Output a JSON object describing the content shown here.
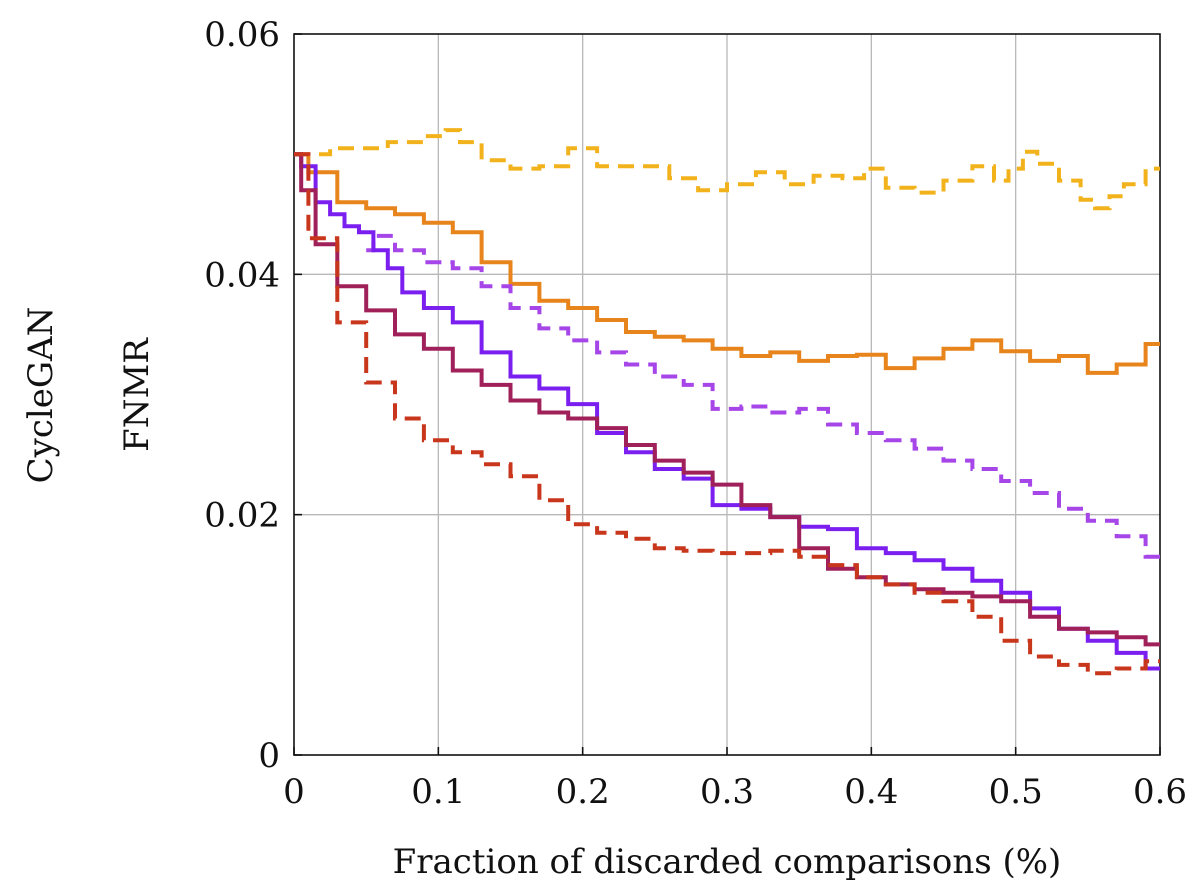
{
  "chart_data": {
    "type": "line",
    "title": "",
    "row_label": "CycleGAN",
    "xlabel": "Fraction of discarded comparisons (%)",
    "ylabel": "FNMR",
    "xlim": [
      0,
      0.6
    ],
    "ylim": [
      0,
      0.06
    ],
    "xticks": [
      0,
      0.1,
      0.2,
      0.3,
      0.4,
      0.5,
      0.6
    ],
    "xtick_labels": [
      "0",
      "0.1",
      "0.2",
      "0.3",
      "0.4",
      "0.5",
      "0.6"
    ],
    "yticks": [
      0,
      0.02,
      0.04,
      0.06
    ],
    "ytick_labels": [
      "0",
      "0.02",
      "0.04",
      "0.06"
    ],
    "grid": true,
    "legend": "none",
    "series": [
      {
        "name": "yellow-dashed",
        "color": "#f2b21c",
        "dashed": true,
        "x": [
          0,
          0.05,
          0.08,
          0.1,
          0.11,
          0.12,
          0.14,
          0.16,
          0.18,
          0.2,
          0.22,
          0.25,
          0.27,
          0.29,
          0.31,
          0.33,
          0.35,
          0.37,
          0.39,
          0.4,
          0.42,
          0.44,
          0.46,
          0.48,
          0.49,
          0.5,
          0.51,
          0.52,
          0.54,
          0.55,
          0.56,
          0.57,
          0.58,
          0.6
        ],
        "y": [
          0.05,
          0.0505,
          0.051,
          0.0515,
          0.052,
          0.051,
          0.0495,
          0.0488,
          0.049,
          0.0505,
          0.049,
          0.049,
          0.048,
          0.047,
          0.0475,
          0.0485,
          0.0475,
          0.0482,
          0.048,
          0.0488,
          0.0472,
          0.0468,
          0.0478,
          0.049,
          0.0478,
          0.0488,
          0.0502,
          0.0492,
          0.0478,
          0.0462,
          0.0455,
          0.0465,
          0.0475,
          0.0488
        ]
      },
      {
        "name": "orange-solid",
        "color": "#e8841c",
        "dashed": false,
        "x": [
          0,
          0.02,
          0.04,
          0.06,
          0.08,
          0.1,
          0.12,
          0.14,
          0.16,
          0.18,
          0.2,
          0.22,
          0.24,
          0.26,
          0.28,
          0.3,
          0.32,
          0.34,
          0.36,
          0.38,
          0.4,
          0.42,
          0.44,
          0.46,
          0.48,
          0.5,
          0.52,
          0.54,
          0.56,
          0.58,
          0.6
        ],
        "y": [
          0.05,
          0.0485,
          0.046,
          0.0455,
          0.045,
          0.0443,
          0.0435,
          0.041,
          0.0392,
          0.0378,
          0.0372,
          0.0362,
          0.0352,
          0.0348,
          0.0345,
          0.0338,
          0.0332,
          0.0335,
          0.0328,
          0.0332,
          0.0333,
          0.0322,
          0.033,
          0.0338,
          0.0345,
          0.0336,
          0.0328,
          0.0332,
          0.0318,
          0.0325,
          0.0342
        ]
      },
      {
        "name": "purple-dashed",
        "color": "#a646e8",
        "dashed": true,
        "x": [
          0.05,
          0.06,
          0.08,
          0.1,
          0.12,
          0.14,
          0.16,
          0.18,
          0.2,
          0.22,
          0.24,
          0.26,
          0.28,
          0.3,
          0.32,
          0.34,
          0.36,
          0.38,
          0.4,
          0.42,
          0.44,
          0.46,
          0.48,
          0.5,
          0.52,
          0.54,
          0.56,
          0.58,
          0.6
        ],
        "y": [
          0.042,
          0.0432,
          0.042,
          0.041,
          0.0405,
          0.039,
          0.0372,
          0.0355,
          0.0345,
          0.0335,
          0.0325,
          0.0315,
          0.0308,
          0.0288,
          0.029,
          0.0285,
          0.0288,
          0.0275,
          0.0268,
          0.0262,
          0.0255,
          0.0245,
          0.0238,
          0.0228,
          0.0218,
          0.0205,
          0.0195,
          0.0182,
          0.0165
        ]
      },
      {
        "name": "violet-solid",
        "color": "#7a1ff0",
        "dashed": false,
        "x": [
          0,
          0.01,
          0.02,
          0.03,
          0.04,
          0.05,
          0.06,
          0.07,
          0.08,
          0.1,
          0.12,
          0.14,
          0.16,
          0.18,
          0.2,
          0.22,
          0.24,
          0.26,
          0.28,
          0.3,
          0.32,
          0.34,
          0.36,
          0.38,
          0.4,
          0.42,
          0.44,
          0.46,
          0.48,
          0.5,
          0.52,
          0.54,
          0.56,
          0.58,
          0.6
        ],
        "y": [
          0.05,
          0.049,
          0.046,
          0.045,
          0.044,
          0.0435,
          0.042,
          0.0405,
          0.0385,
          0.0372,
          0.036,
          0.0335,
          0.0315,
          0.0305,
          0.0292,
          0.0268,
          0.0252,
          0.0238,
          0.023,
          0.0208,
          0.0205,
          0.0198,
          0.019,
          0.0188,
          0.0172,
          0.0168,
          0.0162,
          0.0155,
          0.0145,
          0.0135,
          0.0122,
          0.0105,
          0.0095,
          0.0085,
          0.0072
        ]
      },
      {
        "name": "crimson-solid",
        "color": "#a0205a",
        "dashed": false,
        "x": [
          0,
          0.01,
          0.02,
          0.04,
          0.06,
          0.08,
          0.1,
          0.12,
          0.14,
          0.16,
          0.18,
          0.2,
          0.22,
          0.24,
          0.26,
          0.28,
          0.3,
          0.32,
          0.34,
          0.36,
          0.38,
          0.4,
          0.42,
          0.44,
          0.46,
          0.48,
          0.5,
          0.52,
          0.54,
          0.56,
          0.58,
          0.6
        ],
        "y": [
          0.05,
          0.047,
          0.0425,
          0.039,
          0.037,
          0.035,
          0.0338,
          0.032,
          0.0308,
          0.0295,
          0.0285,
          0.028,
          0.0272,
          0.0258,
          0.0245,
          0.0235,
          0.0225,
          0.0208,
          0.0198,
          0.0172,
          0.0155,
          0.0148,
          0.0142,
          0.0138,
          0.0135,
          0.0132,
          0.0128,
          0.0115,
          0.0105,
          0.0102,
          0.0098,
          0.0092
        ]
      },
      {
        "name": "red-dashed",
        "color": "#c8361c",
        "dashed": true,
        "x": [
          0,
          0.02,
          0.04,
          0.06,
          0.08,
          0.1,
          0.12,
          0.14,
          0.16,
          0.18,
          0.2,
          0.22,
          0.24,
          0.26,
          0.28,
          0.3,
          0.32,
          0.34,
          0.36,
          0.38,
          0.4,
          0.42,
          0.44,
          0.46,
          0.48,
          0.5,
          0.52,
          0.54,
          0.56,
          0.58,
          0.6
        ],
        "y": [
          0.05,
          0.043,
          0.036,
          0.031,
          0.028,
          0.0262,
          0.0252,
          0.0242,
          0.0232,
          0.0212,
          0.0192,
          0.0185,
          0.018,
          0.0172,
          0.017,
          0.0168,
          0.0168,
          0.017,
          0.0165,
          0.0158,
          0.0148,
          0.0142,
          0.0135,
          0.0128,
          0.0115,
          0.0095,
          0.0082,
          0.0075,
          0.0068,
          0.0072,
          0.0078
        ]
      }
    ]
  }
}
